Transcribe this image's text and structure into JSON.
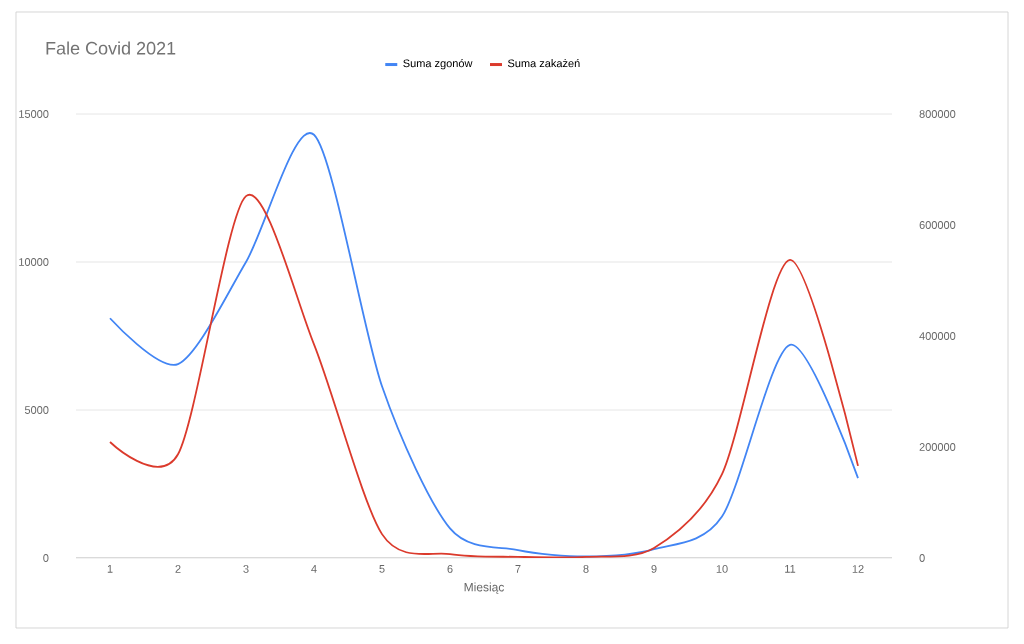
{
  "chart_data": {
    "type": "line",
    "title": "Fale Covid 2021",
    "xlabel": "Miesiąc",
    "categories": [
      "1",
      "2",
      "3",
      "4",
      "5",
      "6",
      "7",
      "8",
      "9",
      "10",
      "11",
      "12"
    ],
    "series": [
      {
        "name": "Suma zgonów",
        "color": "#4285f4",
        "values": [
          8100,
          6550,
          10000,
          14300,
          5800,
          1000,
          270,
          50,
          300,
          1400,
          7200,
          2700
        ]
      },
      {
        "name": "Suma zakażeń",
        "color": "#db3a2c",
        "axis": "y2",
        "values": [
          209000,
          187000,
          652000,
          385000,
          43000,
          7000,
          2000,
          2000,
          18000,
          151000,
          537000,
          166000
        ]
      }
    ],
    "ylim": [
      0,
      15000
    ],
    "yticks": [
      0,
      5000,
      10000,
      15000
    ],
    "y2lim": [
      0,
      800000
    ],
    "y2ticks": [
      0,
      200000,
      400000,
      600000,
      800000
    ],
    "grid": "y",
    "legend": "top"
  }
}
